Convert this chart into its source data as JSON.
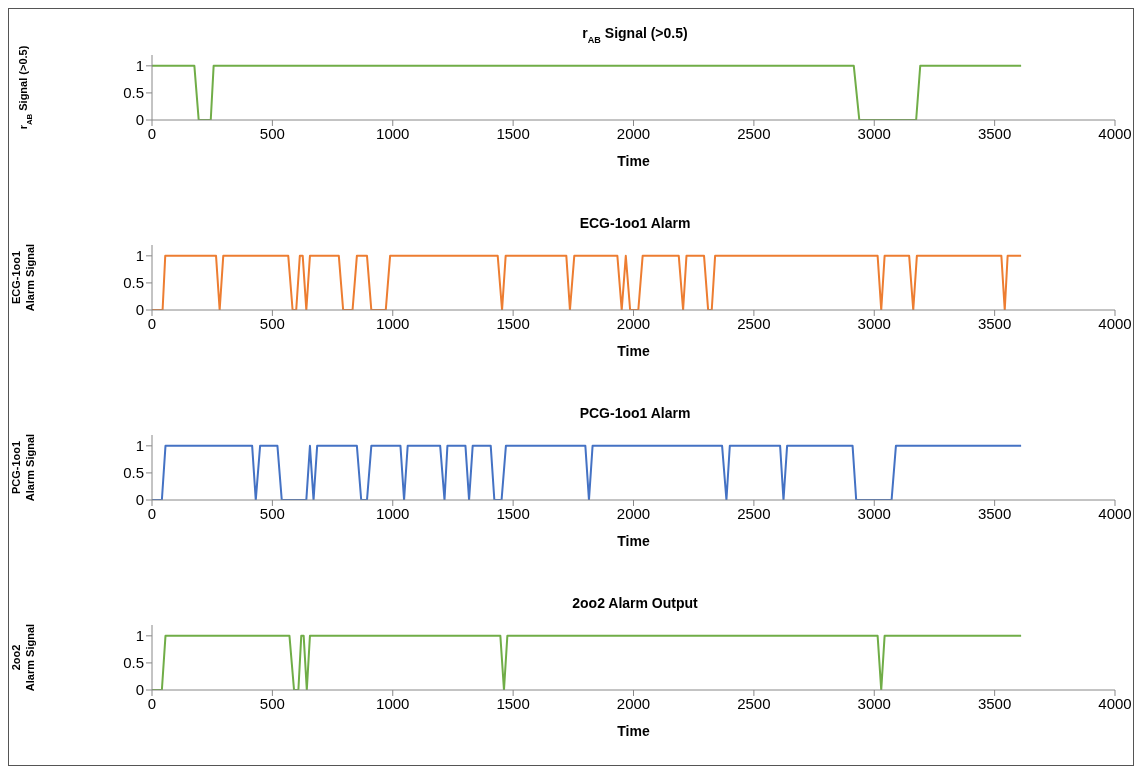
{
  "chart_data": [
    {
      "type": "line",
      "title": "r$_{AB}$  Signal (>0.5)",
      "xlabel": "Time",
      "ylabel": "r$_{AB}$ Signal (>0.5)",
      "x": [
        0,
        176,
        194,
        244,
        256,
        2915,
        2938,
        3174,
        3191,
        3610
      ],
      "series": [
        {
          "color": "#70ad47",
          "values": [
            1,
            1,
            0,
            0,
            1,
            1,
            0,
            0,
            1,
            1
          ]
        }
      ],
      "xlim": [
        0,
        4000
      ],
      "xticks": [
        0,
        500,
        1000,
        1500,
        2000,
        2500,
        3000,
        3500,
        4000
      ],
      "ylim": [
        0,
        1.2
      ],
      "yticks": [
        0,
        0.5,
        1
      ],
      "grid": false,
      "legend": false,
      "marker": "none"
    },
    {
      "type": "line",
      "title": "ECG-1oo1 Alarm",
      "xlabel": "Time",
      "ylabel": "ECG-1oo1\nAlarm Signal",
      "x": [
        0,
        44,
        55,
        266,
        281,
        296,
        566,
        584,
        599,
        614,
        626,
        641,
        656,
        776,
        794,
        833,
        851,
        893,
        911,
        971,
        989,
        1436,
        1454,
        1469,
        1721,
        1736,
        1754,
        1933,
        1951,
        1968,
        1986,
        2020,
        2038,
        2188,
        2206,
        2220,
        2293,
        2310,
        2325,
        2339,
        3014,
        3029,
        3043,
        3145,
        3162,
        3177,
        3528,
        3542,
        3554,
        3610
      ],
      "series": [
        {
          "color": "#ed7d31",
          "values": [
            0,
            0,
            1,
            1,
            0,
            1,
            1,
            0,
            0,
            1,
            1,
            0,
            1,
            1,
            0,
            0,
            1,
            1,
            0,
            0,
            1,
            1,
            0,
            1,
            1,
            0,
            1,
            1,
            0,
            1,
            0,
            0,
            1,
            1,
            0,
            1,
            1,
            0,
            0,
            1,
            1,
            0,
            1,
            1,
            0,
            1,
            1,
            0,
            1,
            1
          ]
        }
      ],
      "xlim": [
        0,
        4000
      ],
      "xticks": [
        0,
        500,
        1000,
        1500,
        2000,
        2500,
        3000,
        3500,
        4000
      ],
      "ylim": [
        0,
        1.2
      ],
      "yticks": [
        0,
        0.5,
        1
      ],
      "grid": false,
      "legend": false,
      "marker": "none"
    },
    {
      "type": "line",
      "title": "PCG-1oo1 Alarm",
      "xlabel": "Time",
      "ylabel": "PCG-1oo1\nAlarm Signal",
      "x": [
        0,
        41,
        56,
        416,
        431,
        449,
        521,
        539,
        641,
        656,
        671,
        686,
        851,
        869,
        893,
        911,
        1032,
        1047,
        1062,
        1197,
        1215,
        1227,
        1302,
        1317,
        1332,
        1407,
        1422,
        1452,
        1470,
        1800,
        1815,
        1830,
        2368,
        2386,
        2400,
        2609,
        2623,
        2638,
        2910,
        2925,
        3072,
        3090,
        3610
      ],
      "series": [
        {
          "color": "#4472c4",
          "values": [
            0,
            0,
            1,
            1,
            0,
            1,
            1,
            0,
            0,
            1,
            0,
            1,
            1,
            0,
            0,
            1,
            1,
            0,
            1,
            1,
            0,
            1,
            1,
            0,
            1,
            1,
            0,
            0,
            1,
            1,
            0,
            1,
            1,
            0,
            1,
            1,
            0,
            1,
            1,
            0,
            0,
            1,
            1
          ]
        }
      ],
      "xlim": [
        0,
        4000
      ],
      "xticks": [
        0,
        500,
        1000,
        1500,
        2000,
        2500,
        3000,
        3500,
        4000
      ],
      "ylim": [
        0,
        1.2
      ],
      "yticks": [
        0,
        0.5,
        1
      ],
      "grid": false,
      "legend": false,
      "marker": "none"
    },
    {
      "type": "line",
      "title": "2oo2 Alarm Output",
      "xlabel": "Time",
      "ylabel": "2oo2\nAlarm Signal",
      "x": [
        0,
        41,
        56,
        571,
        590,
        608,
        620,
        630,
        643,
        656,
        1447,
        1462,
        1476,
        3014,
        3029,
        3043,
        3610
      ],
      "series": [
        {
          "color": "#70ad47",
          "values": [
            0,
            0,
            1,
            1,
            0,
            0,
            1,
            1,
            0,
            1,
            1,
            0,
            1,
            1,
            0,
            1,
            1
          ]
        }
      ],
      "xlim": [
        0,
        4000
      ],
      "xticks": [
        0,
        500,
        1000,
        1500,
        2000,
        2500,
        3000,
        3500,
        4000
      ],
      "ylim": [
        0,
        1.2
      ],
      "yticks": [
        0,
        0.5,
        1
      ],
      "grid": false,
      "legend": false,
      "marker": "none"
    }
  ]
}
